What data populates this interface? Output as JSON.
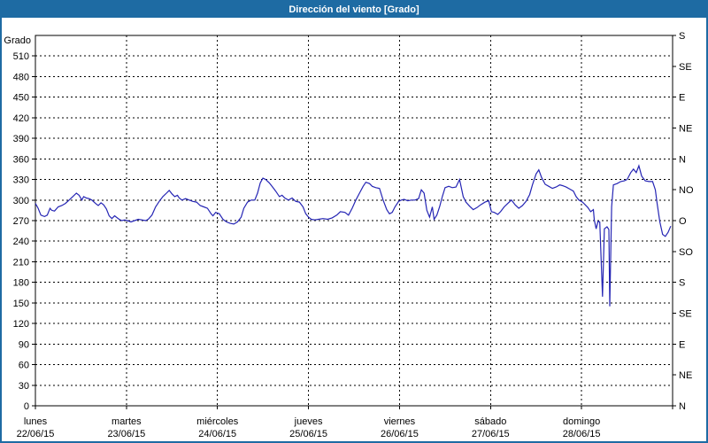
{
  "title": "Dirección del viento [Grado]",
  "colors": {
    "titlebar": "#1e6ba3",
    "border": "#1e6ba3",
    "line": "#2525b4",
    "grid": "#000000",
    "background": "#ffffff"
  },
  "chart_data": {
    "type": "line",
    "title": "Dirección del viento [Grado]",
    "y_axis": {
      "label": "Grado",
      "min": 0,
      "max": 540,
      "tick_step": 30,
      "tick_labels": [
        0,
        30,
        60,
        90,
        120,
        150,
        180,
        210,
        240,
        270,
        300,
        330,
        360,
        390,
        420,
        450,
        480,
        510
      ]
    },
    "right_axis": {
      "ticks": [
        {
          "deg": 540,
          "label": "S"
        },
        {
          "deg": 495,
          "label": "SE"
        },
        {
          "deg": 450,
          "label": "E"
        },
        {
          "deg": 405,
          "label": "NE"
        },
        {
          "deg": 360,
          "label": "N"
        },
        {
          "deg": 315,
          "label": "NO"
        },
        {
          "deg": 270,
          "label": "O"
        },
        {
          "deg": 225,
          "label": "SO"
        },
        {
          "deg": 180,
          "label": "S"
        },
        {
          "deg": 135,
          "label": "SE"
        },
        {
          "deg": 90,
          "label": "E"
        },
        {
          "deg": 45,
          "label": "NE"
        },
        {
          "deg": 0,
          "label": "N"
        }
      ]
    },
    "x_axis": {
      "span_days": 7,
      "days": [
        {
          "name": "lunes",
          "date": "22/06/15"
        },
        {
          "name": "martes",
          "date": "23/06/15"
        },
        {
          "name": "miércoles",
          "date": "24/06/15"
        },
        {
          "name": "jueves",
          "date": "25/06/15"
        },
        {
          "name": "viernes",
          "date": "26/06/15"
        },
        {
          "name": "sábado",
          "date": "27/06/15"
        },
        {
          "name": "domingo",
          "date": "28/06/15"
        }
      ]
    },
    "grid": {
      "horizontal": "dashed",
      "vertical": "dashed"
    },
    "series": [
      {
        "name": "Dirección del viento",
        "unit": "Grado",
        "color": "#2525b4",
        "points": [
          [
            0,
            295
          ],
          [
            0.03,
            288
          ],
          [
            0.06,
            278
          ],
          [
            0.1,
            276
          ],
          [
            0.13,
            278
          ],
          [
            0.16,
            288
          ],
          [
            0.18,
            285
          ],
          [
            0.21,
            284
          ],
          [
            0.25,
            290
          ],
          [
            0.29,
            292
          ],
          [
            0.33,
            295
          ],
          [
            0.37,
            300
          ],
          [
            0.41,
            305
          ],
          [
            0.45,
            310
          ],
          [
            0.48,
            307
          ],
          [
            0.51,
            300
          ],
          [
            0.53,
            305
          ],
          [
            0.56,
            303
          ],
          [
            0.59,
            302
          ],
          [
            0.62,
            300
          ],
          [
            0.66,
            295
          ],
          [
            0.69,
            292
          ],
          [
            0.72,
            296
          ],
          [
            0.75,
            293
          ],
          [
            0.78,
            287
          ],
          [
            0.81,
            277
          ],
          [
            0.84,
            273
          ],
          [
            0.87,
            277
          ],
          [
            0.89,
            275
          ],
          [
            0.92,
            272
          ],
          [
            0.95,
            270
          ],
          [
            0.98,
            271
          ],
          [
            1.01,
            270
          ],
          [
            1.05,
            268
          ],
          [
            1.09,
            270
          ],
          [
            1.13,
            272
          ],
          [
            1.17,
            271
          ],
          [
            1.21,
            270
          ],
          [
            1.24,
            272
          ],
          [
            1.28,
            278
          ],
          [
            1.32,
            290
          ],
          [
            1.36,
            298
          ],
          [
            1.4,
            305
          ],
          [
            1.44,
            310
          ],
          [
            1.47,
            314
          ],
          [
            1.5,
            309
          ],
          [
            1.53,
            305
          ],
          [
            1.56,
            307
          ],
          [
            1.58,
            303
          ],
          [
            1.61,
            300
          ],
          [
            1.65,
            302
          ],
          [
            1.69,
            300
          ],
          [
            1.73,
            298
          ],
          [
            1.77,
            297
          ],
          [
            1.81,
            292
          ],
          [
            1.85,
            290
          ],
          [
            1.89,
            288
          ],
          [
            1.93,
            280
          ],
          [
            1.95,
            277
          ],
          [
            1.98,
            282
          ],
          [
            2.02,
            280
          ],
          [
            2.06,
            272
          ],
          [
            2.1,
            268
          ],
          [
            2.14,
            266
          ],
          [
            2.18,
            265
          ],
          [
            2.22,
            268
          ],
          [
            2.26,
            275
          ],
          [
            2.29,
            288
          ],
          [
            2.33,
            297
          ],
          [
            2.37,
            300
          ],
          [
            2.41,
            300
          ],
          [
            2.44,
            310
          ],
          [
            2.47,
            325
          ],
          [
            2.5,
            332
          ],
          [
            2.53,
            330
          ],
          [
            2.57,
            325
          ],
          [
            2.61,
            318
          ],
          [
            2.64,
            313
          ],
          [
            2.68,
            305
          ],
          [
            2.71,
            307
          ],
          [
            2.74,
            303
          ],
          [
            2.78,
            300
          ],
          [
            2.82,
            303
          ],
          [
            2.86,
            298
          ],
          [
            2.9,
            297
          ],
          [
            2.94,
            290
          ],
          [
            2.97,
            280
          ],
          [
            3,
            275
          ],
          [
            3.03,
            272
          ],
          [
            3.07,
            271
          ],
          [
            3.11,
            272
          ],
          [
            3.16,
            273
          ],
          [
            3.21,
            272
          ],
          [
            3.26,
            274
          ],
          [
            3.31,
            278
          ],
          [
            3.35,
            283
          ],
          [
            3.4,
            282
          ],
          [
            3.44,
            278
          ],
          [
            3.48,
            288
          ],
          [
            3.52,
            300
          ],
          [
            3.56,
            310
          ],
          [
            3.6,
            320
          ],
          [
            3.63,
            326
          ],
          [
            3.67,
            324
          ],
          [
            3.7,
            320
          ],
          [
            3.74,
            318
          ],
          [
            3.78,
            317
          ],
          [
            3.82,
            300
          ],
          [
            3.86,
            286
          ],
          [
            3.89,
            280
          ],
          [
            3.92,
            282
          ],
          [
            3.95,
            290
          ],
          [
            3.99,
            298
          ],
          [
            4.02,
            300
          ],
          [
            4.05,
            301
          ],
          [
            4.09,
            299
          ],
          [
            4.13,
            300
          ],
          [
            4.17,
            300
          ],
          [
            4.21,
            302
          ],
          [
            4.24,
            315
          ],
          [
            4.27,
            310
          ],
          [
            4.3,
            285
          ],
          [
            4.33,
            275
          ],
          [
            4.36,
            290
          ],
          [
            4.38,
            272
          ],
          [
            4.41,
            278
          ],
          [
            4.44,
            290
          ],
          [
            4.47,
            305
          ],
          [
            4.5,
            318
          ],
          [
            4.54,
            320
          ],
          [
            4.58,
            318
          ],
          [
            4.62,
            319
          ],
          [
            4.66,
            330
          ],
          [
            4.7,
            305
          ],
          [
            4.73,
            297
          ],
          [
            4.77,
            291
          ],
          [
            4.81,
            286
          ],
          [
            4.85,
            289
          ],
          [
            4.89,
            293
          ],
          [
            4.94,
            297
          ],
          [
            4.98,
            299
          ],
          [
            5.01,
            283
          ],
          [
            5.04,
            282
          ],
          [
            5.08,
            279
          ],
          [
            5.11,
            283
          ],
          [
            5.15,
            290
          ],
          [
            5.19,
            295
          ],
          [
            5.23,
            300
          ],
          [
            5.27,
            293
          ],
          [
            5.31,
            288
          ],
          [
            5.35,
            292
          ],
          [
            5.39,
            298
          ],
          [
            5.43,
            308
          ],
          [
            5.46,
            322
          ],
          [
            5.5,
            338
          ],
          [
            5.53,
            344
          ],
          [
            5.56,
            333
          ],
          [
            5.6,
            323
          ],
          [
            5.64,
            320
          ],
          [
            5.68,
            317
          ],
          [
            5.72,
            319
          ],
          [
            5.76,
            322
          ],
          [
            5.79,
            321
          ],
          [
            5.83,
            319
          ],
          [
            5.87,
            316
          ],
          [
            5.91,
            313
          ],
          [
            5.94,
            305
          ],
          [
            5.97,
            300
          ],
          [
            6.01,
            297
          ],
          [
            6.04,
            293
          ],
          [
            6.07,
            289
          ],
          [
            6.1,
            283
          ],
          [
            6.13,
            286
          ],
          [
            6.14,
            271
          ],
          [
            6.16,
            258
          ],
          [
            6.18,
            269
          ],
          [
            6.2,
            268
          ],
          [
            6.23,
            159
          ],
          [
            6.25,
            258
          ],
          [
            6.28,
            261
          ],
          [
            6.3,
            257
          ],
          [
            6.31,
            145
          ],
          [
            6.33,
            290
          ],
          [
            6.35,
            322
          ],
          [
            6.39,
            324
          ],
          [
            6.43,
            327
          ],
          [
            6.47,
            328
          ],
          [
            6.5,
            330
          ],
          [
            6.54,
            340
          ],
          [
            6.57,
            345
          ],
          [
            6.6,
            340
          ],
          [
            6.63,
            350
          ],
          [
            6.66,
            335
          ],
          [
            6.7,
            328
          ],
          [
            6.74,
            327
          ],
          [
            6.78,
            327
          ],
          [
            6.81,
            315
          ],
          [
            6.83,
            295
          ],
          [
            6.86,
            268
          ],
          [
            6.89,
            250
          ],
          [
            6.92,
            247
          ],
          [
            6.95,
            253
          ],
          [
            6.98,
            262
          ]
        ]
      }
    ]
  }
}
